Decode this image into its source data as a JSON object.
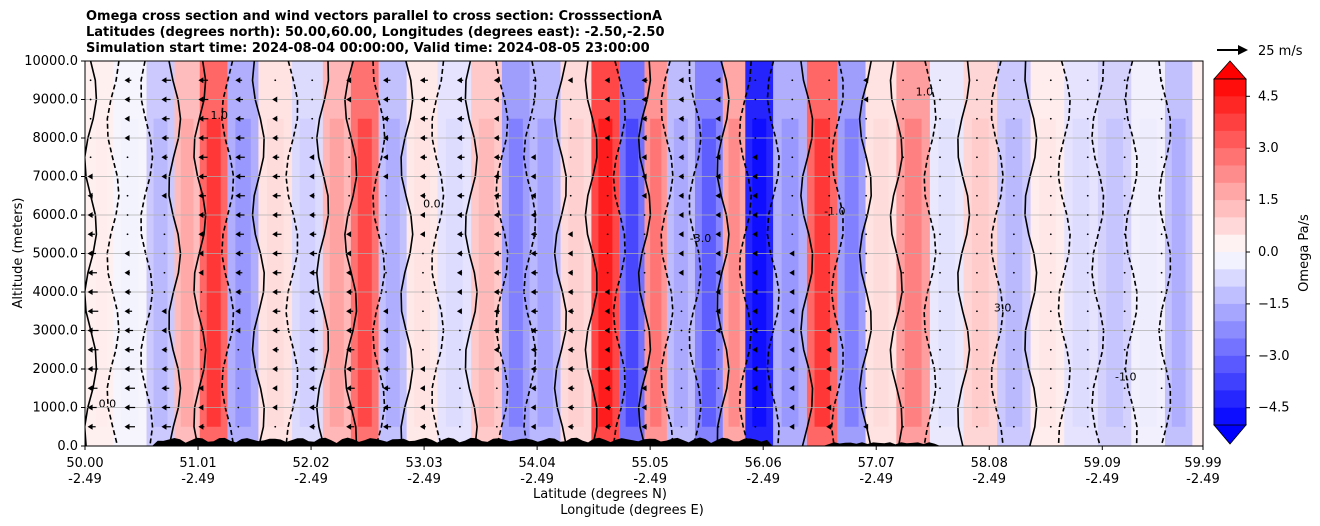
{
  "chart_data": {
    "type": "heatmap",
    "title_lines": [
      "Omega cross section and wind vectors parallel to cross section: CrosssectionA",
      "Latitudes (degrees north): 50.00,60.00, Longitudes (degrees east): -2.50,-2.50",
      "Simulation start time: 2024-08-04 00:00:00, Valid time: 2024-08-05 23:00:00"
    ],
    "ylabel": "Altitude (meters)",
    "xlabel_lines": [
      "Latitude (degrees N)",
      "Longitude (degrees E)"
    ],
    "ylim": [
      0,
      10000
    ],
    "y_ticks": [
      "0.0",
      "1000.0",
      "2000.0",
      "3000.0",
      "4000.0",
      "5000.0",
      "6000.0",
      "7000.0",
      "8000.0",
      "9000.0",
      "10000.0"
    ],
    "x_ticks": [
      {
        "lat": "50.00",
        "lon": "-2.49"
      },
      {
        "lat": "51.01",
        "lon": "-2.49"
      },
      {
        "lat": "52.02",
        "lon": "-2.49"
      },
      {
        "lat": "53.03",
        "lon": "-2.49"
      },
      {
        "lat": "54.04",
        "lon": "-2.49"
      },
      {
        "lat": "55.05",
        "lon": "-2.49"
      },
      {
        "lat": "56.06",
        "lon": "-2.49"
      },
      {
        "lat": "57.07",
        "lon": "-2.49"
      },
      {
        "lat": "58.08",
        "lon": "-2.49"
      },
      {
        "lat": "59.09",
        "lon": "-2.49"
      },
      {
        "lat": "59.99",
        "lon": "-2.49"
      }
    ],
    "colorbar": {
      "label": "Omega Pa/s",
      "range": [
        -5,
        5
      ],
      "ticks": [
        "4.5",
        "3.0",
        "1.5",
        "0.0",
        "−1.5",
        "−3.0",
        "−4.5"
      ],
      "low_color": "#0000ff",
      "mid_color": "#ffffff",
      "high_color": "#ff0000"
    },
    "vector_key": "25 m/s",
    "grid": true,
    "contour_label_samples": [
      "0.0",
      "1.0",
      "-1.0",
      "-3.0",
      "3.0"
    ],
    "omega_columns": [
      {
        "lat": 50.1,
        "omega": 0.3
      },
      {
        "lat": 50.4,
        "omega": -0.2
      },
      {
        "lat": 50.7,
        "omega": -1.2
      },
      {
        "lat": 50.9,
        "omega": 1.5
      },
      {
        "lat": 51.15,
        "omega": 3.5
      },
      {
        "lat": 51.4,
        "omega": -1.8
      },
      {
        "lat": 51.7,
        "omega": 0.6
      },
      {
        "lat": 52.0,
        "omega": -0.8
      },
      {
        "lat": 52.25,
        "omega": 1.6
      },
      {
        "lat": 52.5,
        "omega": 3.2
      },
      {
        "lat": 52.75,
        "omega": -1.4
      },
      {
        "lat": 53.0,
        "omega": 0.5
      },
      {
        "lat": 53.3,
        "omega": -0.6
      },
      {
        "lat": 53.6,
        "omega": 1.2
      },
      {
        "lat": 53.85,
        "omega": -2.2
      },
      {
        "lat": 54.1,
        "omega": -1.6
      },
      {
        "lat": 54.4,
        "omega": 0.8
      },
      {
        "lat": 54.65,
        "omega": 4.2
      },
      {
        "lat": 54.9,
        "omega": -3.2
      },
      {
        "lat": 55.1,
        "omega": 2.4
      },
      {
        "lat": 55.3,
        "omega": -1.5
      },
      {
        "lat": 55.6,
        "omega": -2.8
      },
      {
        "lat": 55.8,
        "omega": 2.0
      },
      {
        "lat": 56.0,
        "omega": -5.0
      },
      {
        "lat": 56.3,
        "omega": -1.8
      },
      {
        "lat": 56.6,
        "omega": 3.5
      },
      {
        "lat": 56.85,
        "omega": -2.2
      },
      {
        "lat": 57.1,
        "omega": 0.6
      },
      {
        "lat": 57.4,
        "omega": 2.2
      },
      {
        "lat": 57.7,
        "omega": -0.5
      },
      {
        "lat": 58.0,
        "omega": 0.9
      },
      {
        "lat": 58.3,
        "omega": -1.2
      },
      {
        "lat": 58.6,
        "omega": 0.4
      },
      {
        "lat": 58.9,
        "omega": -0.6
      },
      {
        "lat": 59.2,
        "omega": -1.0
      },
      {
        "lat": 59.5,
        "omega": -0.3
      },
      {
        "lat": 59.8,
        "omega": -1.4
      }
    ]
  }
}
